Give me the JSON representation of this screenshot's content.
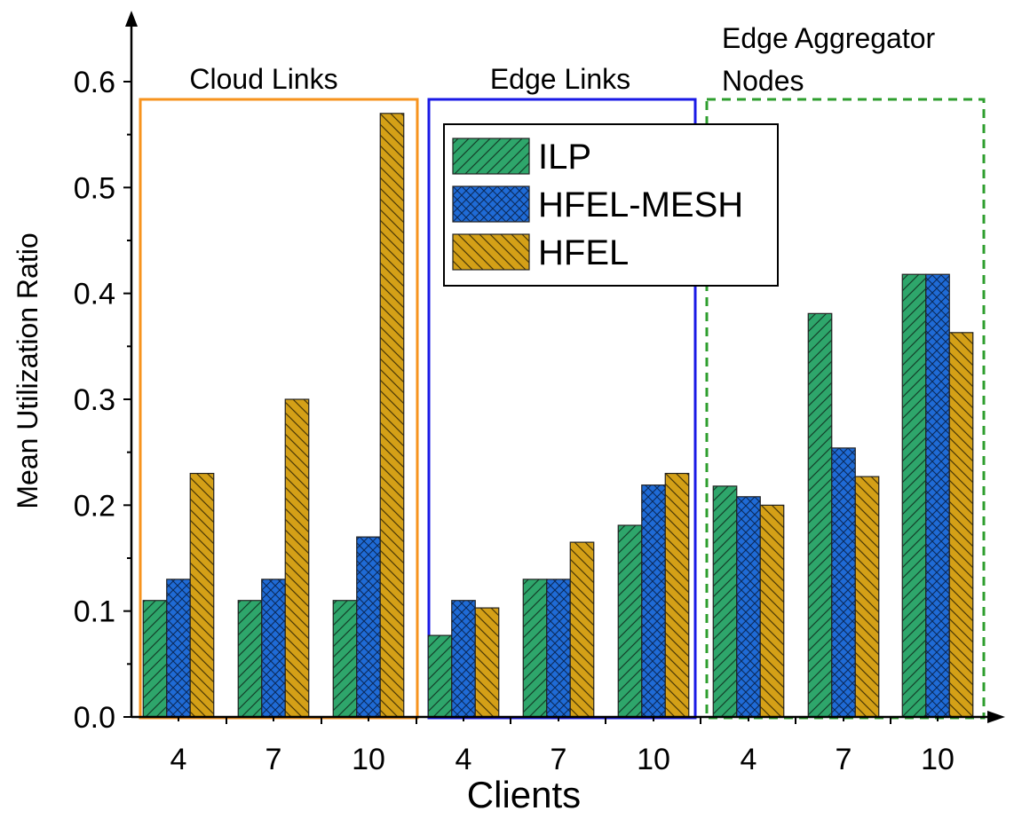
{
  "chart_data": {
    "type": "bar",
    "xlabel": "Clients",
    "ylabel": "Mean Utilization Ratio",
    "ylim": [
      0,
      0.6
    ],
    "yticks": [
      "0.0",
      "0.1",
      "0.2",
      "0.3",
      "0.4",
      "0.5",
      "0.6"
    ],
    "categories": [
      "4",
      "7",
      "10",
      "4",
      "7",
      "10",
      "4",
      "7",
      "10"
    ],
    "groups": [
      {
        "label": "Cloud Links",
        "color": "#F7931E",
        "style": "solid"
      },
      {
        "label": "Edge Links",
        "color": "#1A1AE6",
        "style": "solid"
      },
      {
        "label": "Edge Aggregator Nodes",
        "label_lines": [
          "Edge Aggregator",
          "Nodes"
        ],
        "color": "#2E9E2E",
        "style": "dashed"
      }
    ],
    "series": [
      {
        "name": "ILP",
        "color": "#2EA66B",
        "pattern": "diagonal",
        "values": [
          0.11,
          0.11,
          0.11,
          0.077,
          0.13,
          0.181,
          0.218,
          0.381,
          0.418
        ]
      },
      {
        "name": "HFEL-MESH",
        "color": "#1F6BD6",
        "pattern": "crosshatch",
        "values": [
          0.13,
          0.13,
          0.17,
          0.11,
          0.13,
          0.219,
          0.208,
          0.254,
          0.418
        ]
      },
      {
        "name": "HFEL",
        "color": "#D4A017",
        "pattern": "backdiagonal",
        "values": [
          0.23,
          0.3,
          0.57,
          0.103,
          0.165,
          0.23,
          0.2,
          0.227,
          0.363
        ]
      }
    ],
    "legend_position": "top-center"
  }
}
